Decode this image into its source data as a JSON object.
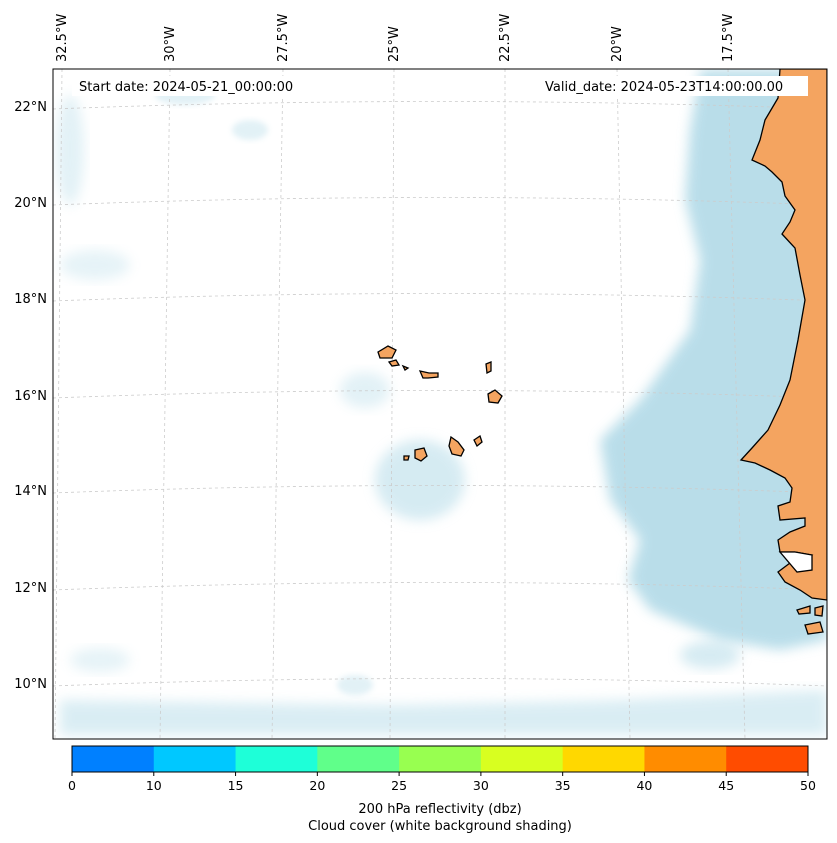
{
  "map": {
    "start_date": "Start date: 2024-05-21_00:00:00",
    "valid_date": "Valid_date: 2024-05-23T14:00:00.00",
    "longitude_labels": [
      "32.5°W",
      "30°W",
      "27.5°W",
      "25°W",
      "22.5°W",
      "20°W",
      "17.5°W"
    ],
    "latitude_labels": [
      "22°N",
      "20°N",
      "18°N",
      "16°N",
      "14°N",
      "12°N",
      "10°N"
    ],
    "land_color": "#f4a460",
    "cloud_color": "#add8e6",
    "gridline_color": "#cccccc"
  },
  "colorbar": {
    "ticks": [
      "0",
      "10",
      "15",
      "20",
      "25",
      "30",
      "35",
      "40",
      "45",
      "50"
    ],
    "colors": [
      "#0080ff",
      "#00c8ff",
      "#1effd8",
      "#60ff8a",
      "#98ff50",
      "#d8ff20",
      "#ffd800",
      "#ff8c00",
      "#ff4c00"
    ],
    "title": "200 hPa reflectivity (dbz)",
    "subtitle": "Cloud cover (white background shading)"
  }
}
